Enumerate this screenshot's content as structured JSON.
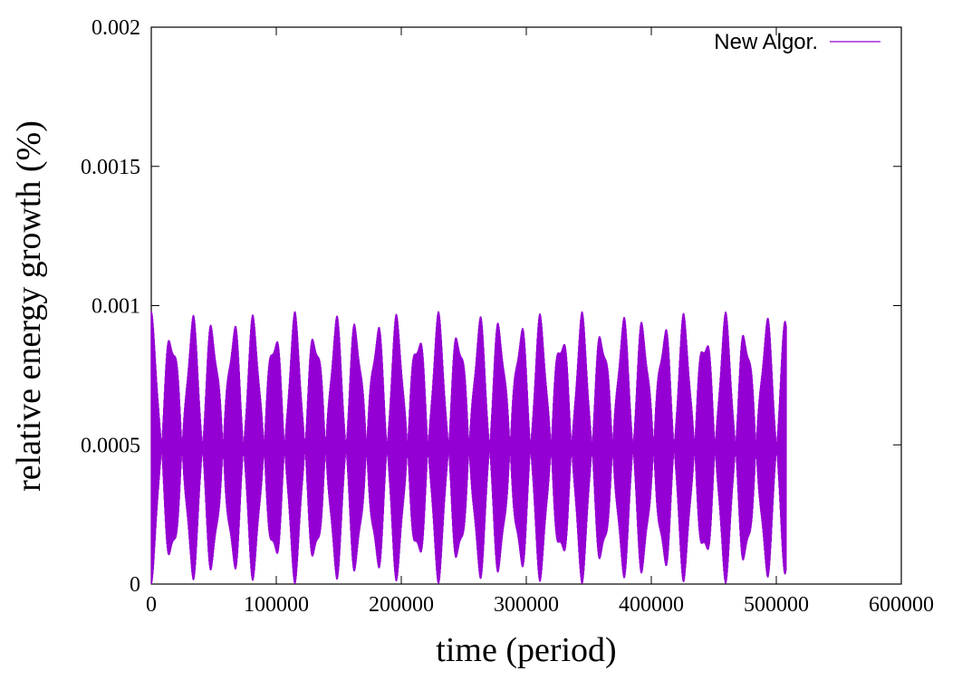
{
  "chart_data": {
    "type": "line",
    "xlabel": "time (period)",
    "ylabel": "relative energy growth (%)",
    "xlim": [
      0,
      600000
    ],
    "ylim": [
      0,
      0.002
    ],
    "x_ticks": [
      0,
      100000,
      200000,
      300000,
      400000,
      500000,
      600000
    ],
    "x_tick_labels": [
      "0",
      "100000",
      "200000",
      "300000",
      "400000",
      "500000",
      "600000"
    ],
    "y_ticks": [
      0,
      0.0005,
      0.001,
      0.0015,
      0.002
    ],
    "y_tick_labels": [
      "0",
      "0.0005",
      "0.001",
      "0.0015",
      "0.002"
    ],
    "legend_position": "top-right",
    "grid": false,
    "series": [
      {
        "name": "New Algor.",
        "color": "#9400d3",
        "x_range": [
          0,
          508000
        ],
        "mean": 0.00049,
        "amplitude_max": 0.00049,
        "beat_period": 16400,
        "min": 0.0,
        "max": 0.00098
      }
    ]
  }
}
